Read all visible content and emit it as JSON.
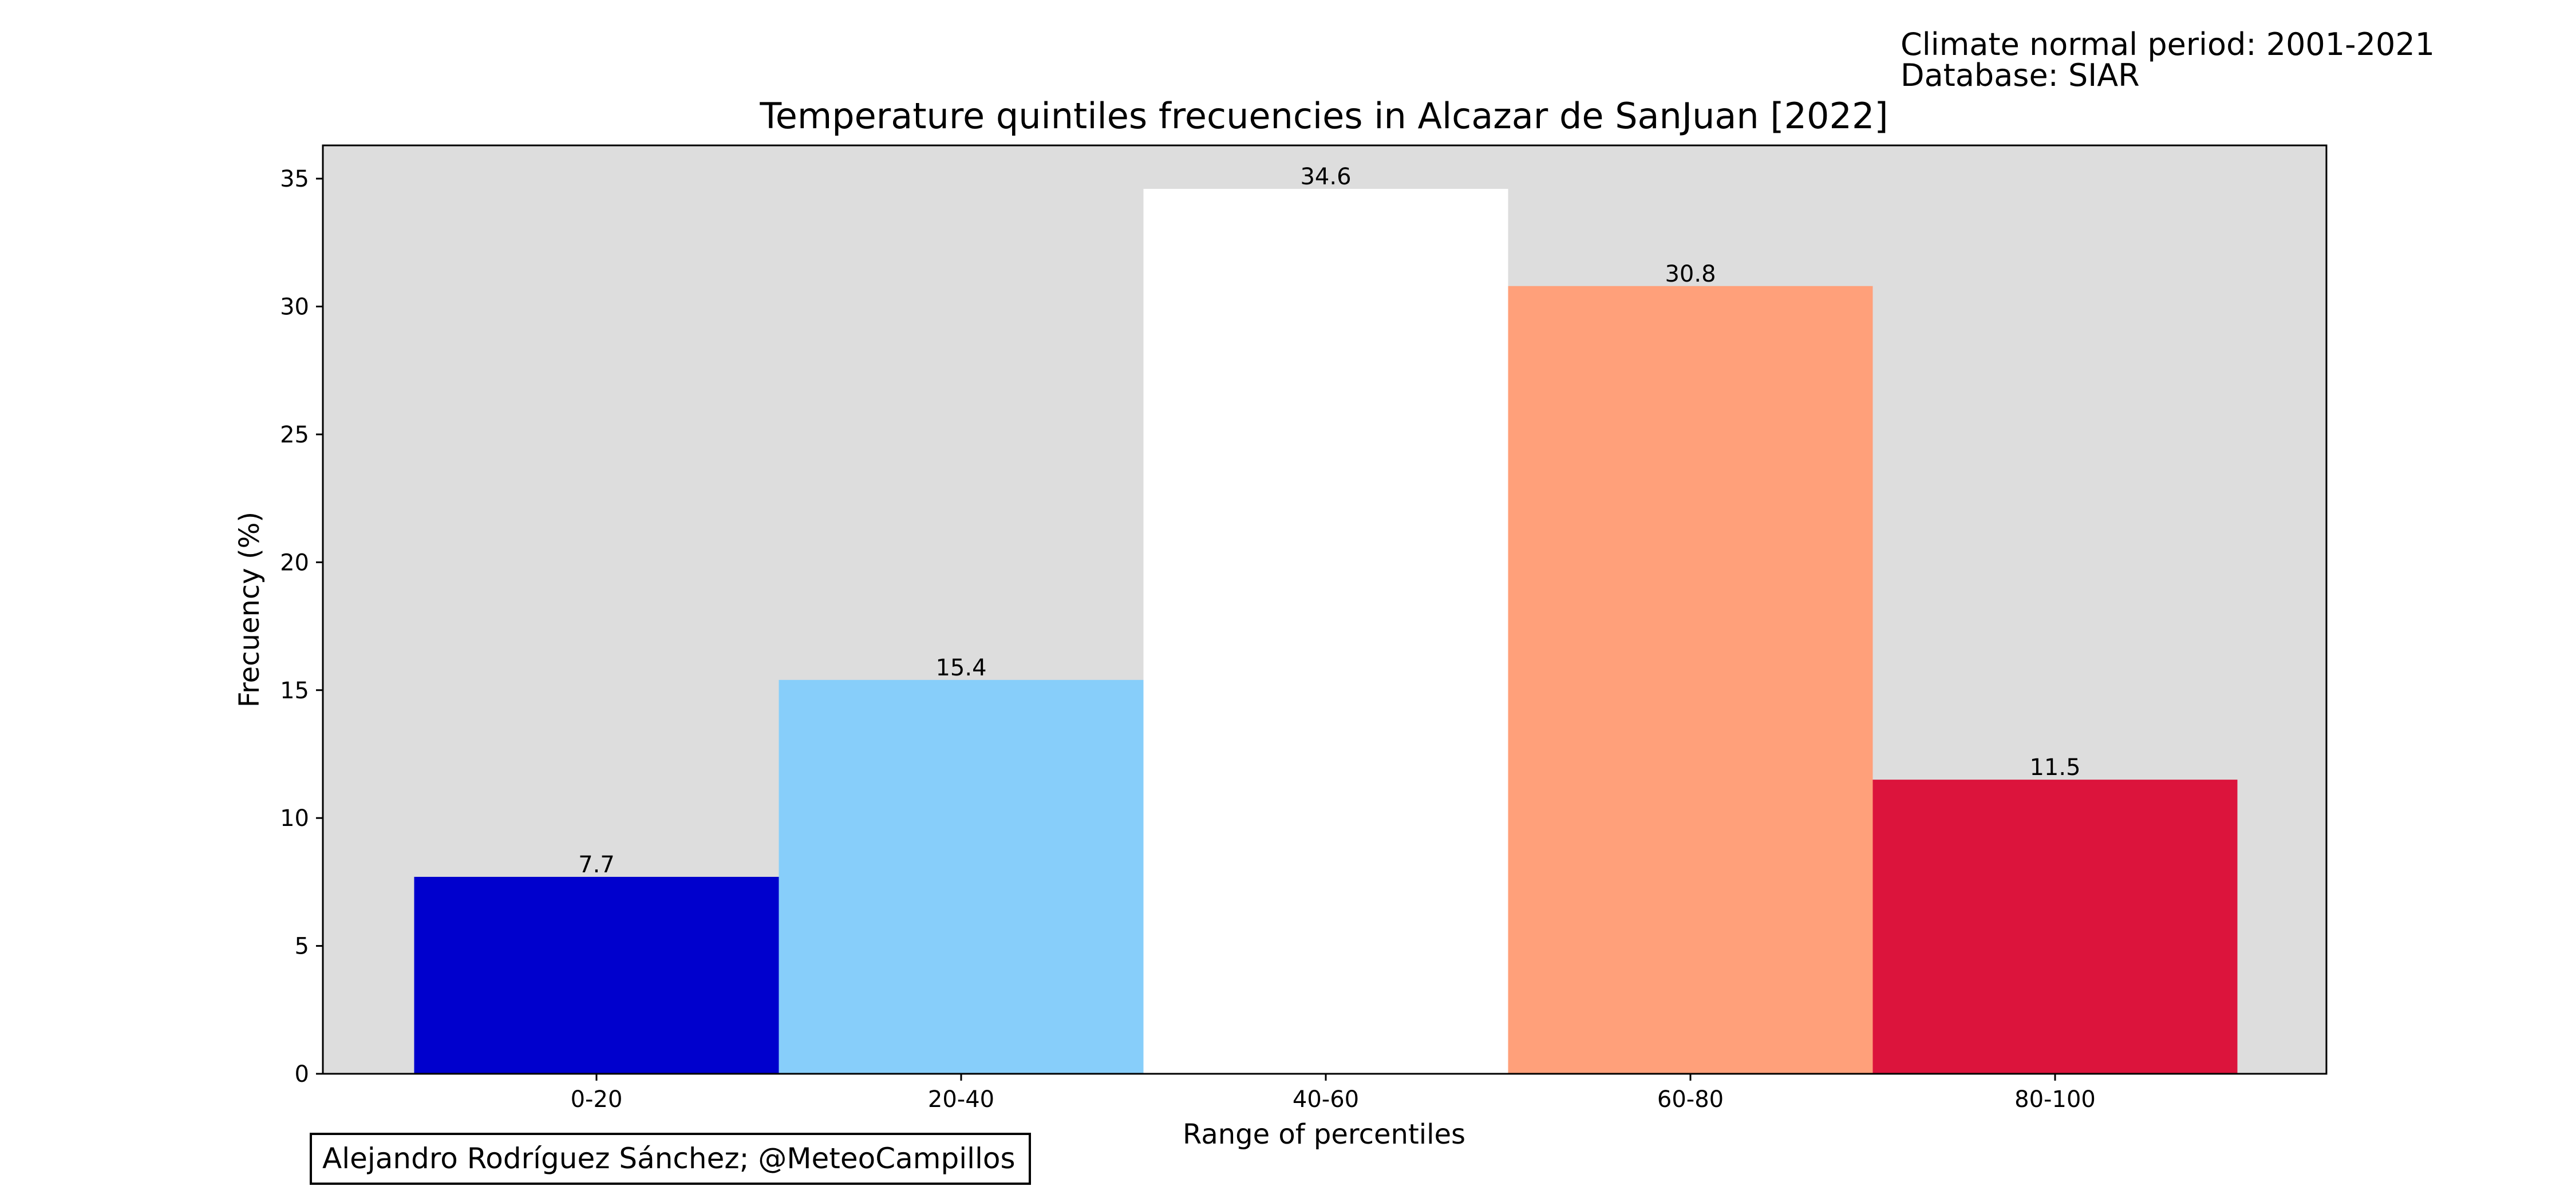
{
  "header": {
    "period_line": "Climate normal period: 2001-2021",
    "database_line": "Database: SIAR"
  },
  "credit": "Alejandro Rodríguez Sánchez; @MeteoCampillos",
  "chart_data": {
    "type": "bar",
    "title": "Temperature quintiles frecuencies in Alcazar de SanJuan [2022]",
    "xlabel": "Range of percentiles",
    "ylabel": "Frecuency (%)",
    "categories": [
      "0-20",
      "20-40",
      "40-60",
      "60-80",
      "80-100"
    ],
    "values": [
      7.7,
      15.4,
      34.6,
      30.8,
      11.5
    ],
    "value_labels": [
      "7.7",
      "15.4",
      "34.6",
      "30.8",
      "11.5"
    ],
    "bar_colors": [
      "#0000cd",
      "#87cefa",
      "#ffffff",
      "#ffa07a",
      "#dc143c"
    ],
    "ylim": [
      0,
      36.3
    ],
    "yticks": [
      0,
      5,
      10,
      15,
      20,
      25,
      30,
      35
    ],
    "plot_background": "#dddddd",
    "grid": false,
    "legend": "none"
  }
}
